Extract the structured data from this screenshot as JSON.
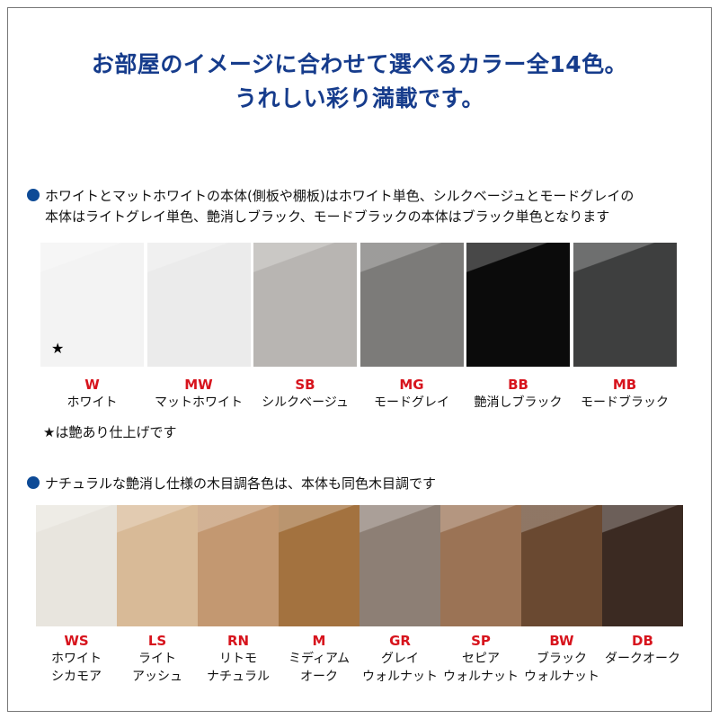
{
  "title": {
    "line1": "お部屋のイメージに合わせて選べるカラー全14色。",
    "line2": "うれしい彩り満載です。"
  },
  "section1": {
    "note_line1": "ホワイトとマットホワイトの本体(側板や棚板)はホワイト単色、シルクベージュとモードグレイの",
    "note_line2": "本体はライトグレイ単色、艶消しブラック、モードブラックの本体はブラック単色となります",
    "swatches": [
      {
        "code": "W",
        "name": "ホワイト",
        "color": "#f3f3f3"
      },
      {
        "code": "MW",
        "name": "マットホワイト",
        "color": "#ebebeb"
      },
      {
        "code": "SB",
        "name": "シルクベージュ",
        "color": "#b8b5b2"
      },
      {
        "code": "MG",
        "name": "モードグレイ",
        "color": "#7c7b79"
      },
      {
        "code": "BB",
        "name": "艶消しブラック",
        "color": "#0b0b0b"
      },
      {
        "code": "MB",
        "name": "モードブラック",
        "color": "#3e3f3f"
      }
    ],
    "star": "★",
    "star_note": "★は艶あり仕上げです"
  },
  "section2": {
    "note": "ナチュラルな艶消し仕様の木目調各色は、本体も同色木目調です",
    "swatches": [
      {
        "code": "WS",
        "name1": "ホワイト",
        "name2": "シカモア",
        "color": "#e8e5de"
      },
      {
        "code": "LS",
        "name1": "ライト",
        "name2": "アッシュ",
        "color": "#d8ba97"
      },
      {
        "code": "RN",
        "name1": "リトモ",
        "name2": "ナチュラル",
        "color": "#c39871"
      },
      {
        "code": "M",
        "name1": "ミディアム",
        "name2": "オーク",
        "color": "#a3723f"
      },
      {
        "code": "GR",
        "name1": "グレイ",
        "name2": "ウォルナット",
        "color": "#8d7f75"
      },
      {
        "code": "SP",
        "name1": "セピア",
        "name2": "ウォルナット",
        "color": "#9b7355"
      },
      {
        "code": "BW",
        "name1": "ブラック",
        "name2": "ウォルナット",
        "color": "#6a4931"
      },
      {
        "code": "DB",
        "name1": "ダークオーク",
        "name2": "",
        "color": "#3b2a22"
      }
    ]
  }
}
